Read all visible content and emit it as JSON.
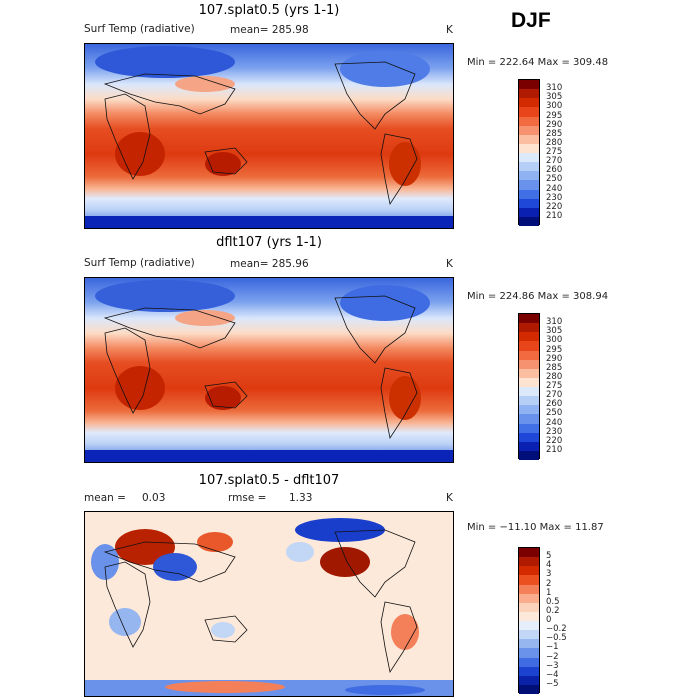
{
  "season": "DJF",
  "panels": [
    {
      "title": "107.splat0.5 (yrs 1-1)",
      "variable": "Surf Temp (radiative)",
      "mean_text": "mean=  285.98",
      "units": "K",
      "minmax": "Min = 222.64 Max = 309.48"
    },
    {
      "title": "dflt107 (yrs 1-1)",
      "variable": "Surf Temp (radiative)",
      "mean_text": "mean=  285.96",
      "units": "K",
      "minmax": "Min = 224.86 Max = 308.94"
    },
    {
      "title": "107.splat0.5 - dflt107",
      "mean_label": "mean =",
      "mean_value": "0.03",
      "rmse_label": "rmse =",
      "rmse_value": "1.33",
      "units": "K",
      "minmax": "Min = −11.10 Max =   11.87"
    }
  ],
  "colorbar_temp": {
    "labels": [
      "310",
      "305",
      "300",
      "295",
      "290",
      "285",
      "280",
      "275",
      "270",
      "260",
      "250",
      "240",
      "230",
      "220",
      "210"
    ],
    "colors": [
      "#7a0000",
      "#b01a00",
      "#d42a00",
      "#e8461a",
      "#f26a40",
      "#f79270",
      "#fbbea0",
      "#fde3d0",
      "#dce9fb",
      "#b6cff7",
      "#8fb2f2",
      "#6892ec",
      "#4170e6",
      "#2048d8",
      "#0a20b0",
      "#000e7a"
    ]
  },
  "colorbar_diff": {
    "labels": [
      "5",
      "4",
      "3",
      "2",
      "1",
      "0.5",
      "0.2",
      "0",
      "−0.2",
      "−0.5",
      "−1",
      "−2",
      "−3",
      "−4",
      "−5"
    ],
    "colors": [
      "#7a0000",
      "#b01a00",
      "#d42a00",
      "#ea5020",
      "#f4805a",
      "#f9ad8c",
      "#fcd2bb",
      "#fde9da",
      "#e6eefb",
      "#c2d6f6",
      "#96b6f0",
      "#6a92ea",
      "#3f6ce2",
      "#1c42d0",
      "#0a22a8",
      "#000e78"
    ]
  }
}
